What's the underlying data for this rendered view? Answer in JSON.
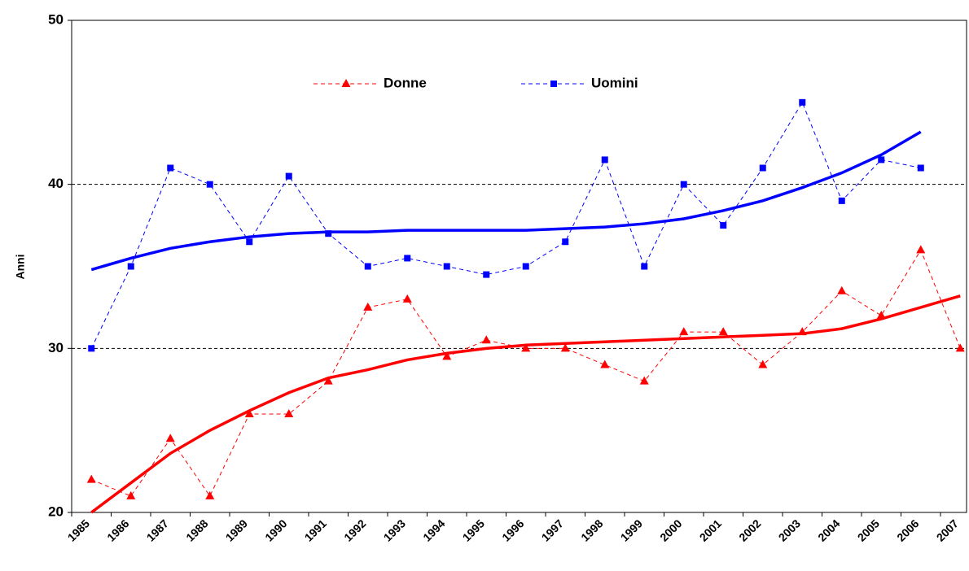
{
  "chart_data": {
    "type": "line",
    "y_label": "Anni",
    "categories": [
      "1985",
      "1986",
      "1987",
      "1988",
      "1989",
      "1990",
      "1991",
      "1992",
      "1993",
      "1994",
      "1995",
      "1996",
      "1997",
      "1998",
      "1999",
      "2000",
      "2001",
      "2002",
      "2003",
      "2004",
      "2005",
      "2006",
      "2007"
    ],
    "ylim": [
      20,
      50
    ],
    "yticks": [
      20,
      30,
      40,
      50
    ],
    "grid": true,
    "series": [
      {
        "name": "Donne",
        "color": "#ff0000",
        "marker": "triangle",
        "values": [
          22,
          21,
          24.5,
          21,
          26,
          26,
          28,
          32.5,
          33,
          29.5,
          30.5,
          30,
          30,
          29,
          28,
          31,
          31,
          29,
          31,
          33.5,
          32,
          36,
          30
        ],
        "trend": [
          20.0,
          21.8,
          23.6,
          25.0,
          26.2,
          27.3,
          28.2,
          28.7,
          29.3,
          29.7,
          30.0,
          30.2,
          30.3,
          30.4,
          30.5,
          30.6,
          30.7,
          30.8,
          30.9,
          31.2,
          31.8,
          32.5,
          33.2
        ]
      },
      {
        "name": "Uomini",
        "color": "#0000ff",
        "marker": "square",
        "values": [
          30,
          35,
          41,
          40,
          36.5,
          40.5,
          37,
          35,
          35.5,
          35,
          34.5,
          35,
          36.5,
          41.5,
          35,
          40,
          37.5,
          41,
          45,
          39,
          41.5,
          41,
          null
        ],
        "trend": [
          34.8,
          35.5,
          36.1,
          36.5,
          36.8,
          37.0,
          37.1,
          37.1,
          37.2,
          37.2,
          37.2,
          37.2,
          37.3,
          37.4,
          37.6,
          37.9,
          38.4,
          39.0,
          39.8,
          40.7,
          41.8,
          43.2,
          null
        ]
      }
    ]
  }
}
